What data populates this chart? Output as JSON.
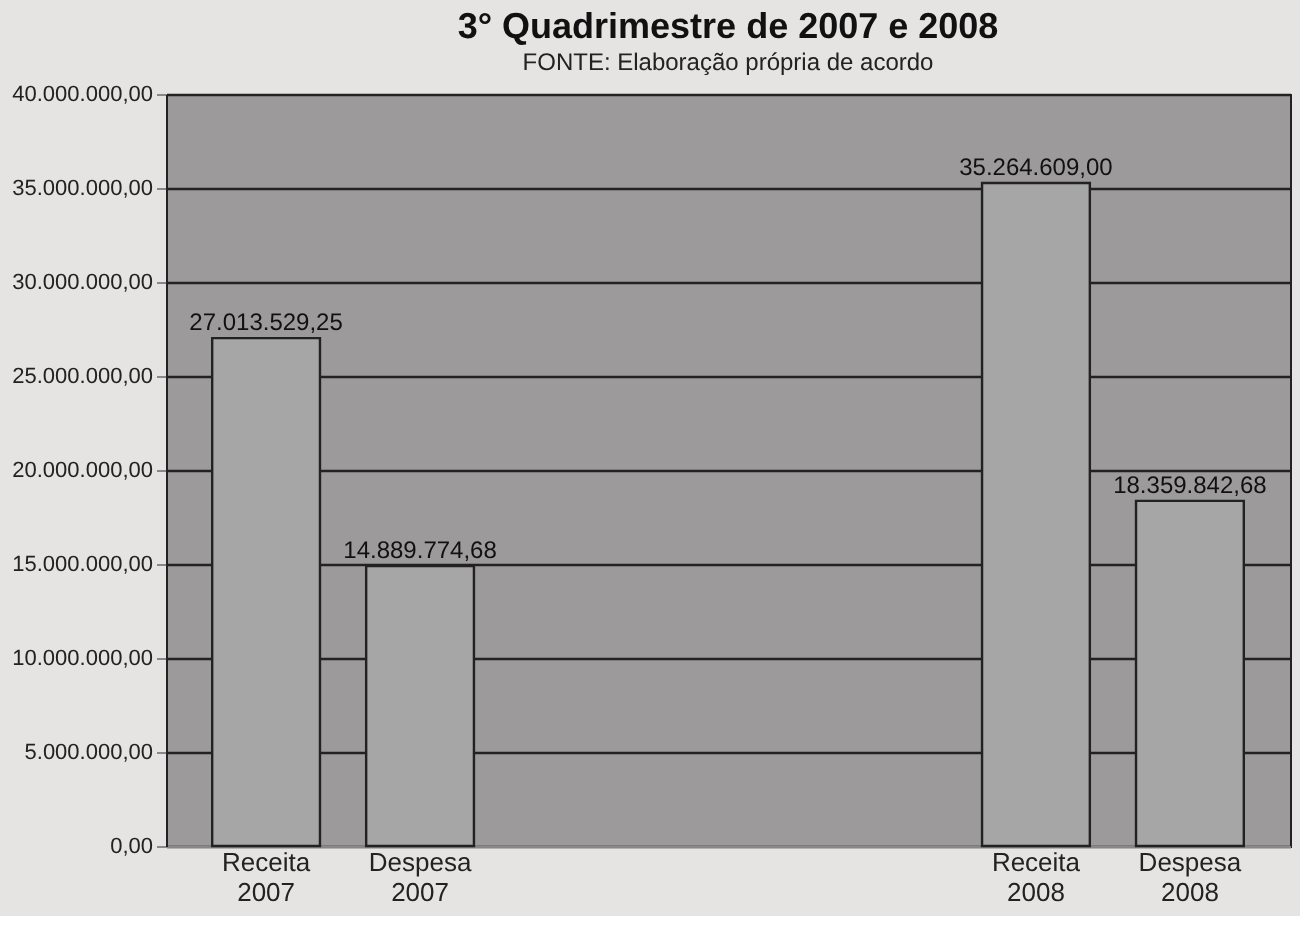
{
  "chart_data": {
    "type": "bar",
    "title": "3° Quadrimestre de 2007 e 2008",
    "categories": [
      "Receita 2007",
      "Despesa 2007",
      null,
      null,
      null,
      "Receita 2008",
      "Despesa 2008"
    ],
    "values": [
      27013529.25,
      14889774.68,
      null,
      null,
      null,
      35264609.0,
      18359842.68
    ],
    "value_labels": [
      "27.013.529,25",
      "14.889.774,68",
      null,
      null,
      null,
      "35.264.609,00",
      "18.359.842,68"
    ],
    "color": "#a6a6a6",
    "ylim": [
      0,
      40000000
    ],
    "yticks": [
      {
        "value": 0,
        "label": "0,00"
      },
      {
        "value": 5000000,
        "label": "5.000.000,00"
      },
      {
        "value": 10000000,
        "label": "10.000.000,00"
      },
      {
        "value": 15000000,
        "label": "15.000.000,00"
      },
      {
        "value": 20000000,
        "label": "20.000.000,00"
      },
      {
        "value": 25000000,
        "label": "25.000.000,00"
      },
      {
        "value": 30000000,
        "label": "30.000.000,00"
      },
      {
        "value": 35000000,
        "label": "35.000.000,00"
      },
      {
        "value": 40000000,
        "label": "40.000.000,00"
      }
    ],
    "grid": "y",
    "annotations": [
      "FONTE: Elaboração própria de acordo"
    ]
  }
}
